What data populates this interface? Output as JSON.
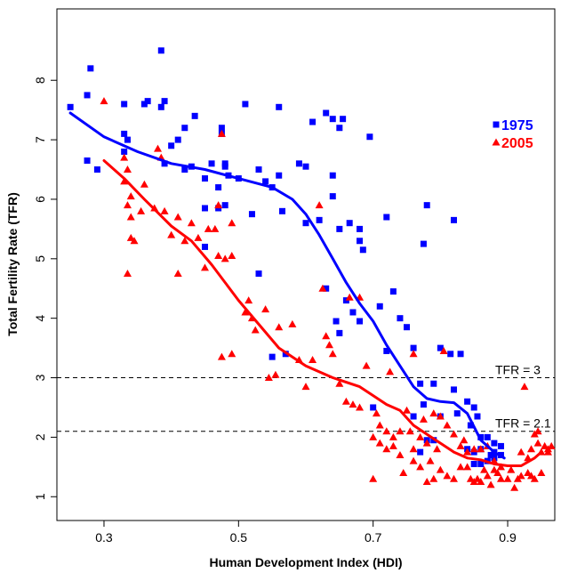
{
  "chart_data": {
    "type": "scatter",
    "xlabel": "Human Development Index (HDI)",
    "ylabel": "Total Fertility Rate (TFR)",
    "xlim": [
      0.23,
      0.97
    ],
    "ylim": [
      0.6,
      9.2
    ],
    "x_ticks": [
      0.3,
      0.5,
      0.7,
      0.9
    ],
    "x_tick_labels": [
      "0.3",
      "0.5",
      "0.7",
      "0.9"
    ],
    "y_ticks": [
      1,
      2,
      3,
      4,
      5,
      6,
      7,
      8
    ],
    "y_tick_labels": [
      "1",
      "2",
      "3",
      "4",
      "5",
      "6",
      "7",
      "8"
    ],
    "grid": false,
    "legend_placement": "top-right",
    "reference_lines": [
      {
        "y": 3,
        "label": "TFR = 3",
        "style": "dashed"
      },
      {
        "y": 2.1,
        "label": "TFR = 2.1",
        "style": "dashed"
      }
    ],
    "series": [
      {
        "name": "1975",
        "color": "#0000ff",
        "marker": "square",
        "points": [
          [
            0.25,
            7.55
          ],
          [
            0.275,
            7.75
          ],
          [
            0.28,
            8.2
          ],
          [
            0.275,
            6.65
          ],
          [
            0.29,
            6.5
          ],
          [
            0.33,
            7.6
          ],
          [
            0.33,
            7.1
          ],
          [
            0.335,
            7.0
          ],
          [
            0.33,
            6.8
          ],
          [
            0.385,
            8.5
          ],
          [
            0.365,
            7.65
          ],
          [
            0.385,
            7.55
          ],
          [
            0.36,
            7.6
          ],
          [
            0.39,
            7.65
          ],
          [
            0.39,
            6.6
          ],
          [
            0.4,
            6.9
          ],
          [
            0.41,
            7.0
          ],
          [
            0.42,
            7.2
          ],
          [
            0.435,
            7.4
          ],
          [
            0.43,
            6.55
          ],
          [
            0.42,
            6.5
          ],
          [
            0.45,
            6.35
          ],
          [
            0.45,
            5.85
          ],
          [
            0.46,
            6.6
          ],
          [
            0.47,
            6.2
          ],
          [
            0.475,
            7.1
          ],
          [
            0.475,
            7.2
          ],
          [
            0.48,
            6.55
          ],
          [
            0.48,
            6.6
          ],
          [
            0.485,
            6.4
          ],
          [
            0.47,
            5.85
          ],
          [
            0.48,
            5.9
          ],
          [
            0.45,
            5.2
          ],
          [
            0.5,
            6.35
          ],
          [
            0.51,
            7.6
          ],
          [
            0.52,
            5.75
          ],
          [
            0.53,
            6.5
          ],
          [
            0.53,
            4.75
          ],
          [
            0.54,
            6.3
          ],
          [
            0.55,
            6.2
          ],
          [
            0.56,
            6.4
          ],
          [
            0.565,
            5.8
          ],
          [
            0.56,
            7.55
          ],
          [
            0.59,
            6.6
          ],
          [
            0.6,
            6.55
          ],
          [
            0.6,
            5.6
          ],
          [
            0.61,
            7.3
          ],
          [
            0.62,
            5.65
          ],
          [
            0.63,
            7.45
          ],
          [
            0.64,
            7.35
          ],
          [
            0.64,
            6.4
          ],
          [
            0.65,
            7.2
          ],
          [
            0.655,
            7.35
          ],
          [
            0.64,
            6.05
          ],
          [
            0.65,
            5.5
          ],
          [
            0.63,
            4.5
          ],
          [
            0.645,
            3.95
          ],
          [
            0.65,
            3.75
          ],
          [
            0.66,
            4.3
          ],
          [
            0.665,
            5.6
          ],
          [
            0.68,
            5.5
          ],
          [
            0.68,
            5.3
          ],
          [
            0.685,
            5.15
          ],
          [
            0.695,
            7.05
          ],
          [
            0.67,
            4.1
          ],
          [
            0.68,
            3.95
          ],
          [
            0.7,
            2.5
          ],
          [
            0.71,
            4.2
          ],
          [
            0.72,
            5.7
          ],
          [
            0.73,
            4.45
          ],
          [
            0.72,
            3.45
          ],
          [
            0.74,
            4.0
          ],
          [
            0.75,
            3.85
          ],
          [
            0.76,
            3.5
          ],
          [
            0.77,
            2.9
          ],
          [
            0.775,
            2.55
          ],
          [
            0.78,
            5.9
          ],
          [
            0.775,
            5.25
          ],
          [
            0.79,
            2.9
          ],
          [
            0.8,
            3.5
          ],
          [
            0.815,
            3.4
          ],
          [
            0.82,
            5.65
          ],
          [
            0.82,
            2.8
          ],
          [
            0.83,
            3.4
          ],
          [
            0.825,
            2.4
          ],
          [
            0.84,
            2.6
          ],
          [
            0.845,
            2.2
          ],
          [
            0.85,
            1.55
          ],
          [
            0.85,
            2.5
          ],
          [
            0.855,
            2.35
          ],
          [
            0.86,
            1.8
          ],
          [
            0.86,
            2.0
          ],
          [
            0.86,
            1.55
          ],
          [
            0.87,
            1.6
          ],
          [
            0.87,
            2.0
          ],
          [
            0.88,
            1.9
          ],
          [
            0.88,
            1.75
          ],
          [
            0.875,
            1.7
          ],
          [
            0.89,
            1.7
          ],
          [
            0.89,
            1.85
          ],
          [
            0.88,
            1.65
          ],
          [
            0.85,
            1.75
          ],
          [
            0.84,
            1.8
          ],
          [
            0.79,
            1.95
          ],
          [
            0.76,
            2.35
          ],
          [
            0.77,
            1.75
          ],
          [
            0.8,
            2.35
          ],
          [
            0.78,
            1.95
          ],
          [
            0.57,
            3.4
          ],
          [
            0.55,
            3.35
          ]
        ],
        "trend": [
          [
            0.25,
            7.45
          ],
          [
            0.3,
            7.05
          ],
          [
            0.35,
            6.8
          ],
          [
            0.4,
            6.6
          ],
          [
            0.45,
            6.5
          ],
          [
            0.5,
            6.35
          ],
          [
            0.55,
            6.2
          ],
          [
            0.58,
            6.0
          ],
          [
            0.6,
            5.75
          ],
          [
            0.62,
            5.4
          ],
          [
            0.64,
            5.0
          ],
          [
            0.66,
            4.6
          ],
          [
            0.68,
            4.25
          ],
          [
            0.7,
            3.95
          ],
          [
            0.72,
            3.55
          ],
          [
            0.74,
            3.2
          ],
          [
            0.76,
            2.85
          ],
          [
            0.78,
            2.65
          ],
          [
            0.8,
            2.6
          ],
          [
            0.82,
            2.58
          ],
          [
            0.84,
            2.4
          ],
          [
            0.86,
            1.95
          ],
          [
            0.88,
            1.75
          ],
          [
            0.895,
            1.65
          ]
        ]
      },
      {
        "name": "2005",
        "color": "#ff0000",
        "marker": "triangle",
        "points": [
          [
            0.3,
            7.65
          ],
          [
            0.33,
            6.3
          ],
          [
            0.34,
            6.05
          ],
          [
            0.33,
            6.7
          ],
          [
            0.335,
            6.5
          ],
          [
            0.335,
            5.9
          ],
          [
            0.34,
            5.7
          ],
          [
            0.34,
            5.35
          ],
          [
            0.345,
            5.3
          ],
          [
            0.355,
            5.8
          ],
          [
            0.36,
            6.25
          ],
          [
            0.375,
            5.85
          ],
          [
            0.38,
            6.85
          ],
          [
            0.385,
            6.7
          ],
          [
            0.39,
            5.8
          ],
          [
            0.335,
            4.75
          ],
          [
            0.4,
            5.4
          ],
          [
            0.41,
            4.75
          ],
          [
            0.41,
            5.7
          ],
          [
            0.42,
            5.3
          ],
          [
            0.43,
            5.6
          ],
          [
            0.44,
            5.35
          ],
          [
            0.45,
            4.85
          ],
          [
            0.455,
            5.5
          ],
          [
            0.465,
            5.5
          ],
          [
            0.47,
            5.9
          ],
          [
            0.47,
            5.05
          ],
          [
            0.48,
            5.0
          ],
          [
            0.49,
            5.05
          ],
          [
            0.475,
            7.1
          ],
          [
            0.49,
            5.6
          ],
          [
            0.475,
            3.35
          ],
          [
            0.49,
            3.4
          ],
          [
            0.51,
            4.1
          ],
          [
            0.515,
            4.3
          ],
          [
            0.52,
            4.0
          ],
          [
            0.525,
            3.8
          ],
          [
            0.54,
            4.15
          ],
          [
            0.545,
            3.0
          ],
          [
            0.555,
            3.05
          ],
          [
            0.56,
            3.85
          ],
          [
            0.58,
            3.9
          ],
          [
            0.59,
            3.3
          ],
          [
            0.6,
            2.85
          ],
          [
            0.61,
            3.3
          ],
          [
            0.62,
            5.9
          ],
          [
            0.625,
            4.5
          ],
          [
            0.63,
            3.7
          ],
          [
            0.635,
            3.55
          ],
          [
            0.64,
            3.4
          ],
          [
            0.65,
            2.9
          ],
          [
            0.66,
            2.6
          ],
          [
            0.67,
            2.55
          ],
          [
            0.665,
            4.35
          ],
          [
            0.68,
            4.35
          ],
          [
            0.68,
            2.5
          ],
          [
            0.69,
            3.2
          ],
          [
            0.7,
            2.0
          ],
          [
            0.7,
            1.3
          ],
          [
            0.705,
            2.4
          ],
          [
            0.71,
            2.2
          ],
          [
            0.72,
            2.1
          ],
          [
            0.725,
            3.1
          ],
          [
            0.73,
            2.0
          ],
          [
            0.74,
            1.7
          ],
          [
            0.745,
            1.4
          ],
          [
            0.75,
            2.45
          ],
          [
            0.755,
            2.1
          ],
          [
            0.76,
            1.8
          ],
          [
            0.76,
            3.4
          ],
          [
            0.77,
            1.5
          ],
          [
            0.775,
            2.3
          ],
          [
            0.78,
            1.9
          ],
          [
            0.78,
            1.25
          ],
          [
            0.785,
            1.6
          ],
          [
            0.79,
            1.3
          ],
          [
            0.795,
            1.8
          ],
          [
            0.8,
            1.45
          ],
          [
            0.805,
            3.45
          ],
          [
            0.81,
            1.35
          ],
          [
            0.82,
            1.3
          ],
          [
            0.83,
            1.5
          ],
          [
            0.835,
            1.95
          ],
          [
            0.84,
            1.5
          ],
          [
            0.845,
            1.3
          ],
          [
            0.85,
            1.25
          ],
          [
            0.855,
            1.3
          ],
          [
            0.86,
            1.25
          ],
          [
            0.865,
            1.45
          ],
          [
            0.87,
            1.35
          ],
          [
            0.875,
            1.2
          ],
          [
            0.88,
            1.45
          ],
          [
            0.885,
            1.4
          ],
          [
            0.89,
            1.3
          ],
          [
            0.9,
            1.3
          ],
          [
            0.905,
            1.45
          ],
          [
            0.91,
            1.15
          ],
          [
            0.915,
            1.3
          ],
          [
            0.92,
            1.35
          ],
          [
            0.925,
            2.85
          ],
          [
            0.93,
            1.4
          ],
          [
            0.935,
            1.8
          ],
          [
            0.94,
            2.05
          ],
          [
            0.945,
            1.9
          ],
          [
            0.95,
            1.75
          ],
          [
            0.955,
            1.85
          ],
          [
            0.96,
            1.8
          ],
          [
            0.94,
            1.3
          ],
          [
            0.93,
            1.65
          ],
          [
            0.92,
            1.75
          ],
          [
            0.945,
            2.1
          ],
          [
            0.95,
            1.4
          ],
          [
            0.935,
            1.35
          ],
          [
            0.96,
            1.75
          ],
          [
            0.965,
            1.85
          ],
          [
            0.86,
            1.8
          ],
          [
            0.87,
            1.85
          ],
          [
            0.88,
            1.6
          ],
          [
            0.89,
            1.5
          ],
          [
            0.85,
            1.8
          ],
          [
            0.84,
            1.75
          ],
          [
            0.83,
            1.85
          ],
          [
            0.82,
            2.05
          ],
          [
            0.81,
            2.2
          ],
          [
            0.8,
            2.35
          ],
          [
            0.79,
            2.4
          ],
          [
            0.77,
            2.0
          ],
          [
            0.76,
            1.6
          ],
          [
            0.74,
            2.1
          ],
          [
            0.73,
            1.85
          ],
          [
            0.72,
            1.8
          ],
          [
            0.71,
            1.9
          ]
        ],
        "trend": [
          [
            0.3,
            6.65
          ],
          [
            0.33,
            6.35
          ],
          [
            0.36,
            6.0
          ],
          [
            0.4,
            5.55
          ],
          [
            0.43,
            5.3
          ],
          [
            0.46,
            4.9
          ],
          [
            0.5,
            4.3
          ],
          [
            0.53,
            3.9
          ],
          [
            0.56,
            3.5
          ],
          [
            0.6,
            3.2
          ],
          [
            0.64,
            3.0
          ],
          [
            0.68,
            2.85
          ],
          [
            0.7,
            2.7
          ],
          [
            0.72,
            2.55
          ],
          [
            0.74,
            2.45
          ],
          [
            0.76,
            2.2
          ],
          [
            0.78,
            2.05
          ],
          [
            0.8,
            1.9
          ],
          [
            0.82,
            1.75
          ],
          [
            0.84,
            1.65
          ],
          [
            0.86,
            1.62
          ],
          [
            0.88,
            1.55
          ],
          [
            0.9,
            1.52
          ],
          [
            0.92,
            1.52
          ],
          [
            0.94,
            1.65
          ],
          [
            0.95,
            1.75
          ]
        ]
      }
    ]
  }
}
